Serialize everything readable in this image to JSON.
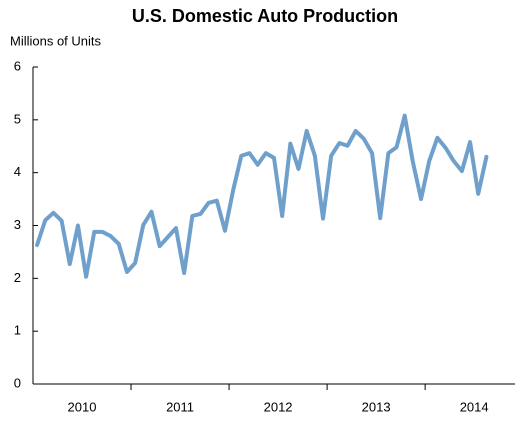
{
  "chart_data": {
    "type": "line",
    "title": "U.S. Domestic Auto Production",
    "y_axis_label": "Millions of Units",
    "categories": [
      null,
      null,
      null,
      null,
      null,
      null,
      null,
      null,
      null,
      null,
      null,
      null,
      null,
      null,
      null,
      null,
      null,
      null,
      null,
      null,
      null,
      null,
      null,
      null,
      null,
      null,
      null,
      null,
      null,
      null,
      null,
      null,
      null,
      null,
      null,
      null,
      null,
      null,
      null,
      null,
      null,
      null,
      null,
      null,
      null,
      null,
      null,
      null,
      null,
      null,
      null,
      null,
      null,
      null,
      null,
      null
    ],
    "year_labels": [
      "2010",
      "2011",
      "2012",
      "2013",
      "2014"
    ],
    "series": [
      {
        "name": "U.S. Domestic Auto Production",
        "color": "#6fa0cc",
        "values": [
          2.63,
          3.1,
          3.24,
          3.09,
          2.27,
          3.0,
          2.03,
          2.88,
          2.88,
          2.8,
          2.65,
          2.12,
          2.29,
          3.01,
          3.26,
          2.61,
          2.78,
          2.95,
          2.1,
          3.18,
          3.22,
          3.43,
          3.47,
          2.9,
          3.67,
          4.32,
          4.37,
          4.15,
          4.37,
          4.28,
          3.18,
          4.55,
          4.07,
          4.79,
          4.32,
          3.13,
          4.32,
          4.56,
          4.51,
          4.79,
          4.64,
          4.37,
          3.14,
          4.37,
          4.48,
          5.08,
          4.2,
          3.5,
          4.22,
          4.66,
          4.47,
          4.22,
          4.03,
          4.58,
          3.6,
          4.3
        ]
      }
    ],
    "ylim": [
      0,
      6
    ],
    "yticks": [
      0,
      1,
      2,
      3,
      4,
      5,
      6
    ]
  }
}
